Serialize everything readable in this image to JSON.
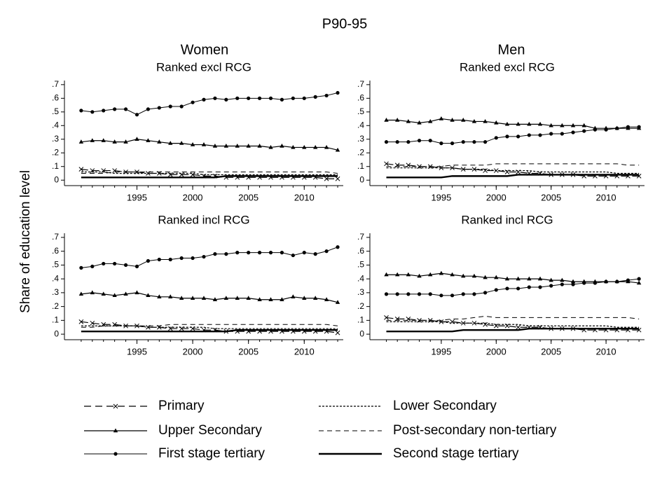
{
  "title": "P90-95",
  "y_label": "Share of education level",
  "column_titles": [
    "Women",
    "Men"
  ],
  "legend": [
    {
      "name": "Primary",
      "dash": "10 6",
      "marker": "x",
      "width": 1.2
    },
    {
      "name": "Lower Secondary",
      "dash": "3 2",
      "marker": "none",
      "width": 1.2
    },
    {
      "name": "Upper Secondary",
      "dash": "none",
      "marker": "triangle",
      "width": 1.2
    },
    {
      "name": "Post-secondary non-tertiary",
      "dash": "7 5",
      "marker": "none",
      "width": 1
    },
    {
      "name": "First stage tertiary",
      "dash": "none",
      "marker": "dot",
      "width": 1
    },
    {
      "name": "Second stage tertiary",
      "dash": "none",
      "marker": "none",
      "width": 2.4
    }
  ],
  "chart_data": [
    {
      "type": "line",
      "title": "Ranked excl RCG",
      "color": "#000000",
      "x": [
        1990,
        1991,
        1992,
        1993,
        1994,
        1995,
        1996,
        1997,
        1998,
        1999,
        2000,
        2001,
        2002,
        2003,
        2004,
        2005,
        2006,
        2007,
        2008,
        2009,
        2010,
        2011,
        2012,
        2013
      ],
      "xlim": [
        1988.5,
        2013.5
      ],
      "xticks": [
        1995,
        2000,
        2005,
        2010
      ],
      "ylim": [
        -0.04,
        0.73
      ],
      "yticks": [
        0,
        {
          "value": 0.1,
          "label": ".1"
        },
        {
          "value": 0.2,
          "label": ".2"
        },
        {
          "value": 0.3,
          "label": ".3"
        },
        {
          "value": 0.4,
          "label": ".4"
        },
        {
          "value": 0.5,
          "label": ".5"
        },
        {
          "value": 0.6,
          "label": ".6"
        },
        {
          "value": 0.7,
          "label": ".7"
        }
      ],
      "series": [
        {
          "values": [
            0.08,
            0.07,
            0.07,
            0.07,
            0.06,
            0.06,
            0.05,
            0.05,
            0.04,
            0.04,
            0.04,
            0.03,
            0.03,
            0.02,
            0.02,
            0.02,
            0.02,
            0.02,
            0.02,
            0.02,
            0.02,
            0.02,
            0.01,
            0.01
          ]
        },
        {
          "values": [
            0.06,
            0.06,
            0.06,
            0.05,
            0.05,
            0.05,
            0.05,
            0.05,
            0.05,
            0.05,
            0.05,
            0.04,
            0.04,
            0.04,
            0.04,
            0.04,
            0.04,
            0.04,
            0.04,
            0.04,
            0.04,
            0.04,
            0.04,
            0.04
          ]
        },
        {
          "values": [
            0.28,
            0.29,
            0.29,
            0.28,
            0.28,
            0.3,
            0.29,
            0.28,
            0.27,
            0.27,
            0.26,
            0.26,
            0.25,
            0.25,
            0.25,
            0.25,
            0.25,
            0.24,
            0.25,
            0.24,
            0.24,
            0.24,
            0.24,
            0.22
          ]
        },
        {
          "values": [
            0.05,
            0.05,
            0.05,
            0.06,
            0.06,
            0.06,
            0.06,
            0.06,
            0.06,
            0.06,
            0.06,
            0.06,
            0.06,
            0.06,
            0.06,
            0.06,
            0.06,
            0.06,
            0.06,
            0.06,
            0.06,
            0.06,
            0.06,
            0.05
          ]
        },
        {
          "values": [
            0.51,
            0.5,
            0.51,
            0.52,
            0.52,
            0.48,
            0.52,
            0.53,
            0.54,
            0.54,
            0.57,
            0.59,
            0.6,
            0.59,
            0.6,
            0.6,
            0.6,
            0.6,
            0.59,
            0.6,
            0.6,
            0.61,
            0.62,
            0.64
          ]
        },
        {
          "values": [
            0.02,
            0.02,
            0.02,
            0.02,
            0.02,
            0.02,
            0.02,
            0.02,
            0.02,
            0.02,
            0.02,
            0.02,
            0.02,
            0.03,
            0.03,
            0.03,
            0.03,
            0.03,
            0.03,
            0.03,
            0.03,
            0.03,
            0.03,
            0.03
          ]
        }
      ]
    },
    {
      "type": "line",
      "title": "Ranked excl RCG",
      "color": "#000000",
      "x": [
        1990,
        1991,
        1992,
        1993,
        1994,
        1995,
        1996,
        1997,
        1998,
        1999,
        2000,
        2001,
        2002,
        2003,
        2004,
        2005,
        2006,
        2007,
        2008,
        2009,
        2010,
        2011,
        2012,
        2013
      ],
      "xlim": [
        1988.5,
        2013.5
      ],
      "xticks": [
        1995,
        2000,
        2005,
        2010
      ],
      "ylim": [
        -0.04,
        0.73
      ],
      "yticks": [
        0,
        {
          "value": 0.1,
          "label": ".1"
        },
        {
          "value": 0.2,
          "label": ".2"
        },
        {
          "value": 0.3,
          "label": ".3"
        },
        {
          "value": 0.4,
          "label": ".4"
        },
        {
          "value": 0.5,
          "label": ".5"
        },
        {
          "value": 0.6,
          "label": ".6"
        },
        {
          "value": 0.7,
          "label": ".7"
        }
      ],
      "series": [
        {
          "values": [
            0.12,
            0.11,
            0.11,
            0.1,
            0.1,
            0.09,
            0.09,
            0.08,
            0.08,
            0.07,
            0.07,
            0.06,
            0.06,
            0.05,
            0.05,
            0.04,
            0.04,
            0.04,
            0.03,
            0.03,
            0.03,
            0.03,
            0.03,
            0.03
          ]
        },
        {
          "values": [
            0.09,
            0.09,
            0.09,
            0.09,
            0.09,
            0.09,
            0.09,
            0.08,
            0.08,
            0.08,
            0.07,
            0.07,
            0.07,
            0.07,
            0.06,
            0.06,
            0.06,
            0.06,
            0.06,
            0.06,
            0.06,
            0.05,
            0.05,
            0.05
          ]
        },
        {
          "values": [
            0.44,
            0.44,
            0.43,
            0.42,
            0.43,
            0.45,
            0.44,
            0.44,
            0.43,
            0.43,
            0.42,
            0.41,
            0.41,
            0.41,
            0.41,
            0.4,
            0.4,
            0.4,
            0.4,
            0.38,
            0.38,
            0.38,
            0.38,
            0.38
          ]
        },
        {
          "values": [
            0.1,
            0.1,
            0.1,
            0.1,
            0.1,
            0.1,
            0.11,
            0.11,
            0.11,
            0.11,
            0.12,
            0.12,
            0.12,
            0.12,
            0.12,
            0.12,
            0.12,
            0.12,
            0.12,
            0.12,
            0.12,
            0.12,
            0.11,
            0.11
          ]
        },
        {
          "values": [
            0.28,
            0.28,
            0.28,
            0.29,
            0.29,
            0.27,
            0.27,
            0.28,
            0.28,
            0.28,
            0.31,
            0.32,
            0.32,
            0.33,
            0.33,
            0.34,
            0.34,
            0.35,
            0.36,
            0.37,
            0.37,
            0.38,
            0.39,
            0.39
          ]
        },
        {
          "values": [
            0.02,
            0.02,
            0.02,
            0.02,
            0.02,
            0.02,
            0.03,
            0.03,
            0.03,
            0.03,
            0.03,
            0.03,
            0.04,
            0.04,
            0.04,
            0.04,
            0.04,
            0.04,
            0.04,
            0.04,
            0.04,
            0.04,
            0.04,
            0.04
          ]
        }
      ]
    },
    {
      "type": "line",
      "title": "Ranked incl RCG",
      "color": "#000000",
      "x": [
        1990,
        1991,
        1992,
        1993,
        1994,
        1995,
        1996,
        1997,
        1998,
        1999,
        2000,
        2001,
        2002,
        2003,
        2004,
        2005,
        2006,
        2007,
        2008,
        2009,
        2010,
        2011,
        2012,
        2013
      ],
      "xlim": [
        1988.5,
        2013.5
      ],
      "xticks": [
        1995,
        2000,
        2005,
        2010
      ],
      "ylim": [
        -0.04,
        0.73
      ],
      "yticks": [
        0,
        {
          "value": 0.1,
          "label": ".1"
        },
        {
          "value": 0.2,
          "label": ".2"
        },
        {
          "value": 0.3,
          "label": ".3"
        },
        {
          "value": 0.4,
          "label": ".4"
        },
        {
          "value": 0.5,
          "label": ".5"
        },
        {
          "value": 0.6,
          "label": ".6"
        },
        {
          "value": 0.7,
          "label": ".7"
        }
      ],
      "series": [
        {
          "values": [
            0.09,
            0.08,
            0.07,
            0.07,
            0.06,
            0.06,
            0.05,
            0.05,
            0.04,
            0.04,
            0.04,
            0.03,
            0.03,
            0.02,
            0.02,
            0.02,
            0.02,
            0.02,
            0.02,
            0.02,
            0.02,
            0.02,
            0.02,
            0.01
          ]
        },
        {
          "values": [
            0.06,
            0.06,
            0.06,
            0.06,
            0.06,
            0.06,
            0.05,
            0.05,
            0.05,
            0.05,
            0.05,
            0.05,
            0.04,
            0.04,
            0.04,
            0.04,
            0.04,
            0.04,
            0.04,
            0.04,
            0.04,
            0.04,
            0.04,
            0.04
          ]
        },
        {
          "values": [
            0.29,
            0.3,
            0.29,
            0.28,
            0.29,
            0.3,
            0.28,
            0.27,
            0.27,
            0.26,
            0.26,
            0.26,
            0.25,
            0.26,
            0.26,
            0.26,
            0.25,
            0.25,
            0.25,
            0.27,
            0.26,
            0.26,
            0.25,
            0.23
          ]
        },
        {
          "values": [
            0.05,
            0.05,
            0.06,
            0.06,
            0.06,
            0.06,
            0.06,
            0.06,
            0.07,
            0.07,
            0.07,
            0.07,
            0.07,
            0.07,
            0.07,
            0.07,
            0.07,
            0.07,
            0.07,
            0.07,
            0.07,
            0.07,
            0.07,
            0.06
          ]
        },
        {
          "values": [
            0.48,
            0.49,
            0.51,
            0.51,
            0.5,
            0.49,
            0.53,
            0.54,
            0.54,
            0.55,
            0.55,
            0.56,
            0.58,
            0.58,
            0.59,
            0.59,
            0.59,
            0.59,
            0.59,
            0.57,
            0.59,
            0.58,
            0.6,
            0.63
          ]
        },
        {
          "values": [
            0.02,
            0.02,
            0.02,
            0.02,
            0.02,
            0.02,
            0.02,
            0.02,
            0.02,
            0.02,
            0.02,
            0.02,
            0.02,
            0.02,
            0.03,
            0.03,
            0.03,
            0.03,
            0.03,
            0.03,
            0.03,
            0.03,
            0.03,
            0.03
          ]
        }
      ]
    },
    {
      "type": "line",
      "title": "Ranked incl RCG",
      "color": "#000000",
      "x": [
        1990,
        1991,
        1992,
        1993,
        1994,
        1995,
        1996,
        1997,
        1998,
        1999,
        2000,
        2001,
        2002,
        2003,
        2004,
        2005,
        2006,
        2007,
        2008,
        2009,
        2010,
        2011,
        2012,
        2013
      ],
      "xlim": [
        1988.5,
        2013.5
      ],
      "xticks": [
        1995,
        2000,
        2005,
        2010
      ],
      "ylim": [
        -0.04,
        0.73
      ],
      "yticks": [
        0,
        {
          "value": 0.1,
          "label": ".1"
        },
        {
          "value": 0.2,
          "label": ".2"
        },
        {
          "value": 0.3,
          "label": ".3"
        },
        {
          "value": 0.4,
          "label": ".4"
        },
        {
          "value": 0.5,
          "label": ".5"
        },
        {
          "value": 0.6,
          "label": ".6"
        },
        {
          "value": 0.7,
          "label": ".7"
        }
      ],
      "series": [
        {
          "values": [
            0.12,
            0.11,
            0.11,
            0.1,
            0.1,
            0.09,
            0.09,
            0.08,
            0.08,
            0.07,
            0.06,
            0.06,
            0.05,
            0.05,
            0.05,
            0.04,
            0.04,
            0.04,
            0.03,
            0.03,
            0.03,
            0.03,
            0.03,
            0.03
          ]
        },
        {
          "values": [
            0.09,
            0.09,
            0.09,
            0.09,
            0.09,
            0.09,
            0.08,
            0.08,
            0.08,
            0.08,
            0.07,
            0.07,
            0.07,
            0.06,
            0.06,
            0.06,
            0.06,
            0.06,
            0.06,
            0.06,
            0.06,
            0.05,
            0.05,
            0.05
          ]
        },
        {
          "values": [
            0.43,
            0.43,
            0.43,
            0.42,
            0.43,
            0.44,
            0.43,
            0.42,
            0.42,
            0.41,
            0.41,
            0.4,
            0.4,
            0.4,
            0.4,
            0.39,
            0.39,
            0.38,
            0.38,
            0.38,
            0.38,
            0.38,
            0.38,
            0.37
          ]
        },
        {
          "values": [
            0.1,
            0.1,
            0.1,
            0.1,
            0.1,
            0.1,
            0.11,
            0.11,
            0.12,
            0.13,
            0.12,
            0.12,
            0.12,
            0.12,
            0.12,
            0.12,
            0.12,
            0.12,
            0.12,
            0.12,
            0.12,
            0.12,
            0.12,
            0.11
          ]
        },
        {
          "values": [
            0.29,
            0.29,
            0.29,
            0.29,
            0.29,
            0.28,
            0.28,
            0.29,
            0.29,
            0.3,
            0.32,
            0.33,
            0.33,
            0.34,
            0.34,
            0.35,
            0.36,
            0.36,
            0.37,
            0.37,
            0.38,
            0.38,
            0.39,
            0.4
          ]
        },
        {
          "values": [
            0.02,
            0.02,
            0.02,
            0.02,
            0.02,
            0.02,
            0.02,
            0.03,
            0.03,
            0.03,
            0.03,
            0.03,
            0.03,
            0.04,
            0.04,
            0.04,
            0.04,
            0.04,
            0.04,
            0.04,
            0.04,
            0.04,
            0.04,
            0.04
          ]
        }
      ]
    }
  ]
}
